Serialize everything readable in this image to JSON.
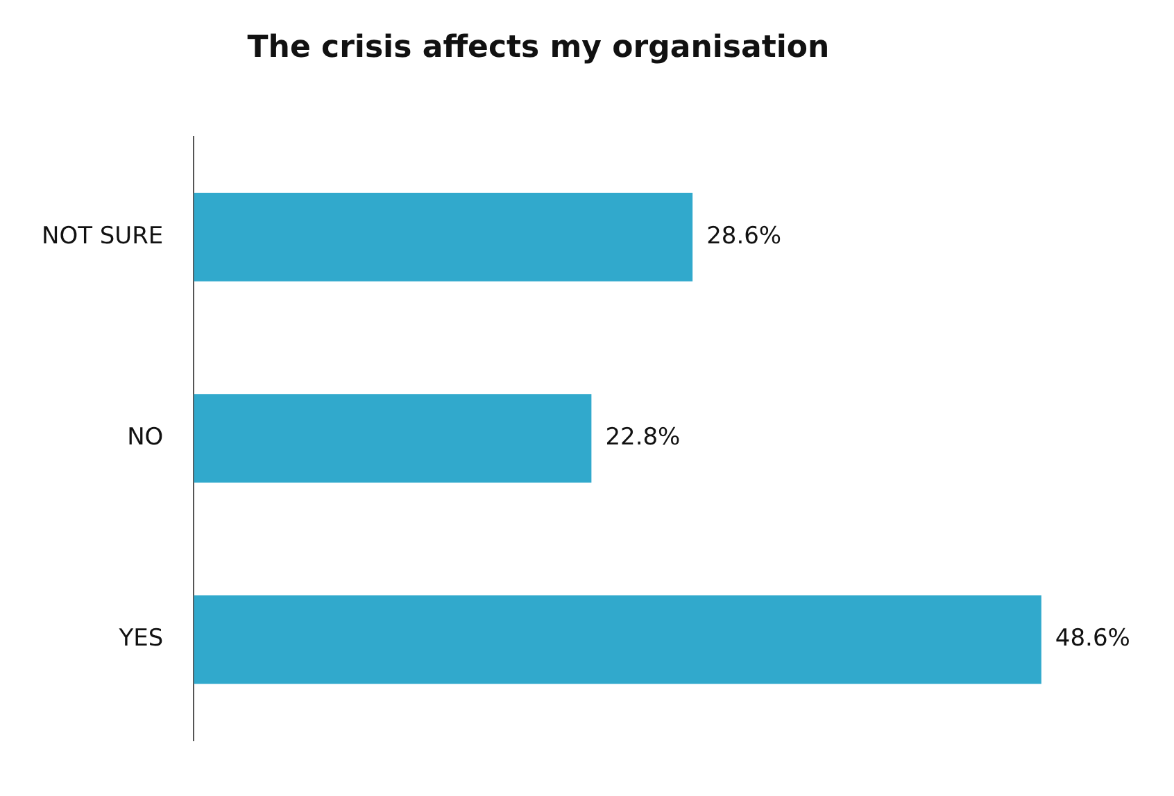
{
  "chart_data": {
    "type": "bar",
    "orientation": "horizontal",
    "title": "The crisis affects my organisation",
    "categories": [
      "NOT SURE",
      "NO",
      "YES"
    ],
    "values": [
      28.6,
      22.8,
      48.6
    ],
    "color": "#31a9cc",
    "value_labels": [
      "28.6%",
      "22.8%",
      "48.6%"
    ]
  }
}
